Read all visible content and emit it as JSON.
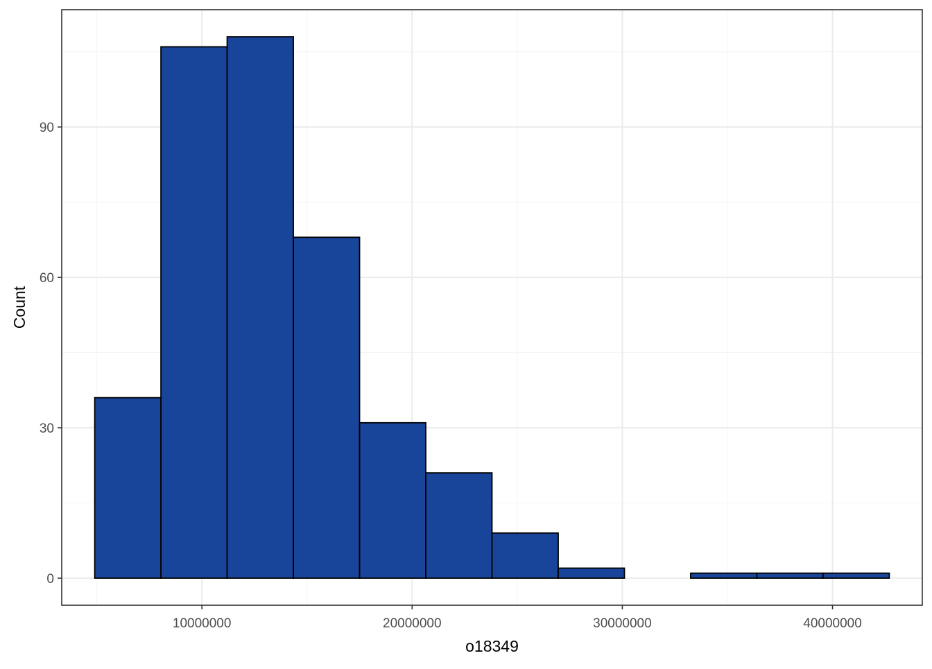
{
  "chart_data": {
    "type": "bar",
    "subtype": "histogram",
    "title": "",
    "xlabel": "o18349",
    "ylabel": "Count",
    "bin_edges": [
      4900000,
      8050000,
      11200000,
      14350000,
      17500000,
      20650000,
      23800000,
      26950000,
      30100000,
      33250000,
      36400000,
      39550000,
      42700000
    ],
    "values": [
      36,
      106,
      108,
      68,
      31,
      21,
      9,
      2,
      0,
      1,
      1,
      1
    ],
    "xlim": [
      3330000,
      44270000
    ],
    "ylim": [
      -5.4,
      113.4
    ],
    "x_ticks": [
      10000000,
      20000000,
      30000000,
      40000000
    ],
    "x_tick_labels": [
      "10000000",
      "20000000",
      "30000000",
      "40000000"
    ],
    "y_ticks": [
      0,
      30,
      60,
      90
    ],
    "y_tick_labels": [
      "0",
      "30",
      "60",
      "90"
    ],
    "grid": true,
    "legend": "none",
    "colors": {
      "bar_fill": "#184499",
      "bar_stroke": "#000000",
      "grid_major": "#ebebeb",
      "grid_minor": "#f5f5f5",
      "panel_border": "#333333",
      "tick_label": "#4d4d4d",
      "axis_title": "#000000"
    }
  }
}
